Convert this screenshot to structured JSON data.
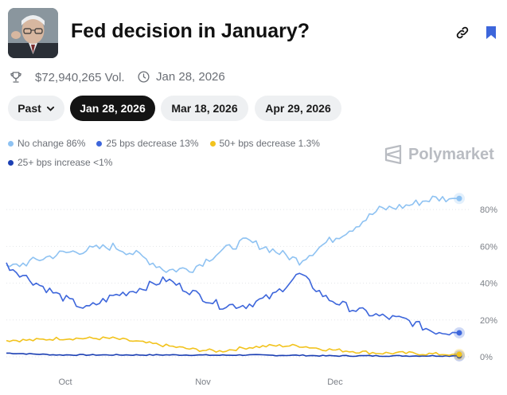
{
  "header": {
    "title": "Fed decision in January?",
    "volume": "$72,940,265 Vol.",
    "end_date": "Jan 28, 2026"
  },
  "date_tabs": {
    "past_label": "Past",
    "items": [
      "Jan 28, 2026",
      "Mar 18, 2026",
      "Apr 29, 2026"
    ],
    "selected": "Jan 28, 2026"
  },
  "brand": {
    "name": "Polymarket"
  },
  "colors": {
    "no_change": "#8ec2f2",
    "decrease_25": "#3d66db",
    "decrease_50": "#f2c31d",
    "increase_25": "#1b3fb3",
    "dark": "#141414"
  },
  "legend": [
    {
      "label": "No change 86%",
      "color": "#8ec2f2"
    },
    {
      "label": "25 bps decrease 13%",
      "color": "#3d66db"
    },
    {
      "label": "50+ bps decrease 1.3%",
      "color": "#f2c31d"
    },
    {
      "label": "25+ bps increase <1%",
      "color": "#1b3fb3"
    }
  ],
  "chart_data": {
    "type": "line",
    "title": "Fed decision in January?",
    "xlabel": "",
    "ylabel": "",
    "x_ticks": [
      "Oct",
      "Nov",
      "Dec"
    ],
    "y_ticks": [
      "0%",
      "20%",
      "40%",
      "60%",
      "80%"
    ],
    "ylim": [
      0,
      90
    ],
    "x": [
      "Sep 15",
      "Sep 22",
      "Sep 29",
      "Oct 6",
      "Oct 13",
      "Oct 20",
      "Oct 27",
      "Nov 3",
      "Nov 10",
      "Nov 17",
      "Nov 24",
      "Dec 1",
      "Dec 8",
      "Dec 15",
      "Dec 22",
      "Dec 29",
      "Jan 5",
      "Jan 12"
    ],
    "series": [
      {
        "name": "No change",
        "current": "86%",
        "values": [
          48,
          52,
          56,
          58,
          60,
          55,
          47,
          48,
          57,
          63,
          58,
          52,
          62,
          70,
          80,
          82,
          86,
          86
        ]
      },
      {
        "name": "25 bps decrease",
        "current": "13%",
        "values": [
          50,
          41,
          33,
          26,
          33,
          37,
          42,
          35,
          28,
          28,
          33,
          45,
          32,
          26,
          22,
          20,
          14,
          13
        ]
      },
      {
        "name": "50+ bps decrease",
        "current": "1.3%",
        "values": [
          9,
          9,
          10,
          10,
          10,
          8,
          6,
          4,
          3,
          5,
          6,
          6,
          4,
          3,
          2,
          2,
          1.5,
          1.3
        ]
      },
      {
        "name": "25+ bps increase",
        "current": "<1%",
        "values": [
          2,
          1.5,
          1,
          1,
          1,
          1,
          1,
          1,
          0.8,
          1,
          0.8,
          0.8,
          0.5,
          0.5,
          0.5,
          0.5,
          0.5,
          0.5
        ]
      }
    ]
  }
}
